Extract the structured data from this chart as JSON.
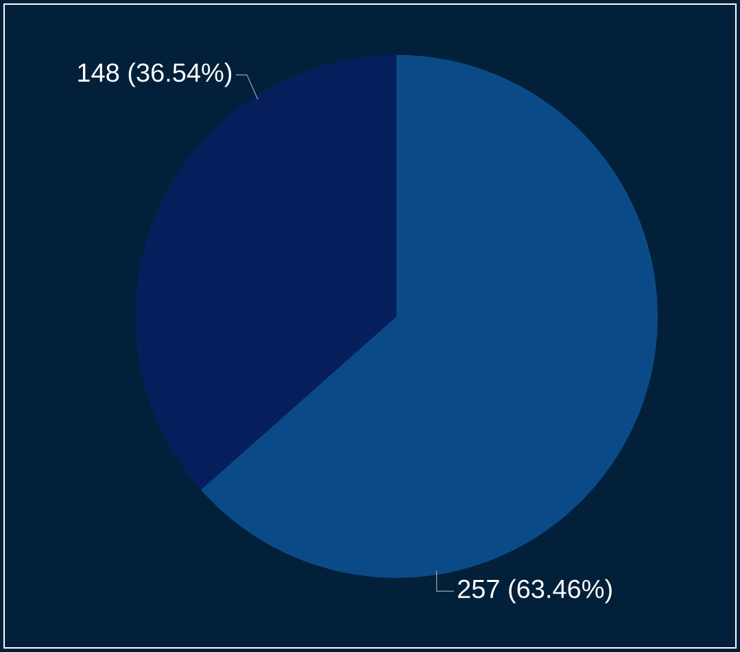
{
  "chart_data": {
    "type": "pie",
    "categories": [
      null,
      null
    ],
    "values": [
      257,
      148
    ],
    "colors": [
      "#0a4b87",
      "#061f5c"
    ],
    "value_labels": [
      "257 (63.46%)",
      "148 (36.54%)"
    ]
  }
}
